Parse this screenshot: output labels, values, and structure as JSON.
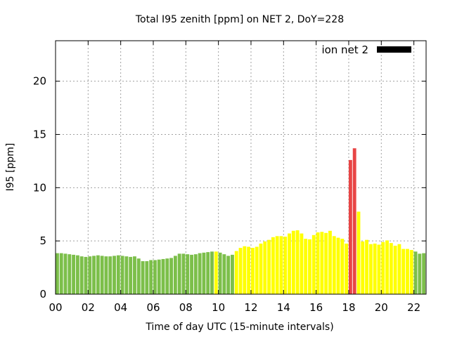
{
  "chart_data": {
    "type": "bar",
    "title": "Total I95 zenith [ppm] on NET 2, DoY=228",
    "xlabel": "Time of day UTC (15-minute intervals)",
    "ylabel": "I95 [ppm]",
    "ylim": [
      0,
      23.8
    ],
    "xlim": [
      0,
      22.75
    ],
    "x_ticks": [
      {
        "value": 0,
        "label": "00"
      },
      {
        "value": 2,
        "label": "02"
      },
      {
        "value": 4,
        "label": "04"
      },
      {
        "value": 6,
        "label": "06"
      },
      {
        "value": 8,
        "label": "08"
      },
      {
        "value": 10,
        "label": "10"
      },
      {
        "value": 12,
        "label": "12"
      },
      {
        "value": 14,
        "label": "14"
      },
      {
        "value": 16,
        "label": "16"
      },
      {
        "value": 18,
        "label": "18"
      },
      {
        "value": 20,
        "label": "20"
      },
      {
        "value": 22,
        "label": "22"
      }
    ],
    "y_ticks": [
      {
        "value": 0,
        "label": "0"
      },
      {
        "value": 5,
        "label": "5"
      },
      {
        "value": 10,
        "label": "10"
      },
      {
        "value": 15,
        "label": "15"
      },
      {
        "value": 20,
        "label": "20"
      }
    ],
    "grid": true,
    "legend": {
      "label": "ion net 2",
      "color": "#000000",
      "placement": "top-right"
    },
    "colors": {
      "green": "#7cbf4a",
      "yellow": "#ffff00",
      "red": "#e84545"
    },
    "bar_step_hours": 0.25,
    "series": [
      {
        "values": [
          {
            "x": 0.0,
            "y": 3.85,
            "c": "green"
          },
          {
            "x": 0.25,
            "y": 3.85,
            "c": "green"
          },
          {
            "x": 0.5,
            "y": 3.8,
            "c": "green"
          },
          {
            "x": 0.75,
            "y": 3.75,
            "c": "green"
          },
          {
            "x": 1.0,
            "y": 3.7,
            "c": "green"
          },
          {
            "x": 1.25,
            "y": 3.65,
            "c": "green"
          },
          {
            "x": 1.5,
            "y": 3.55,
            "c": "green"
          },
          {
            "x": 1.75,
            "y": 3.5,
            "c": "green"
          },
          {
            "x": 2.0,
            "y": 3.55,
            "c": "green"
          },
          {
            "x": 2.25,
            "y": 3.6,
            "c": "green"
          },
          {
            "x": 2.5,
            "y": 3.65,
            "c": "green"
          },
          {
            "x": 2.75,
            "y": 3.6,
            "c": "green"
          },
          {
            "x": 3.0,
            "y": 3.55,
            "c": "green"
          },
          {
            "x": 3.25,
            "y": 3.55,
            "c": "green"
          },
          {
            "x": 3.5,
            "y": 3.6,
            "c": "green"
          },
          {
            "x": 3.75,
            "y": 3.65,
            "c": "green"
          },
          {
            "x": 4.0,
            "y": 3.6,
            "c": "green"
          },
          {
            "x": 4.25,
            "y": 3.55,
            "c": "green"
          },
          {
            "x": 4.5,
            "y": 3.5,
            "c": "green"
          },
          {
            "x": 4.75,
            "y": 3.55,
            "c": "green"
          },
          {
            "x": 5.0,
            "y": 3.35,
            "c": "green"
          },
          {
            "x": 5.25,
            "y": 3.1,
            "c": "green"
          },
          {
            "x": 5.5,
            "y": 3.1,
            "c": "green"
          },
          {
            "x": 5.75,
            "y": 3.2,
            "c": "green"
          },
          {
            "x": 6.0,
            "y": 3.2,
            "c": "green"
          },
          {
            "x": 6.25,
            "y": 3.25,
            "c": "green"
          },
          {
            "x": 6.5,
            "y": 3.3,
            "c": "green"
          },
          {
            "x": 6.75,
            "y": 3.35,
            "c": "green"
          },
          {
            "x": 7.0,
            "y": 3.4,
            "c": "green"
          },
          {
            "x": 7.25,
            "y": 3.6,
            "c": "green"
          },
          {
            "x": 7.5,
            "y": 3.8,
            "c": "green"
          },
          {
            "x": 7.75,
            "y": 3.8,
            "c": "green"
          },
          {
            "x": 8.0,
            "y": 3.75,
            "c": "green"
          },
          {
            "x": 8.25,
            "y": 3.7,
            "c": "green"
          },
          {
            "x": 8.5,
            "y": 3.75,
            "c": "green"
          },
          {
            "x": 8.75,
            "y": 3.85,
            "c": "green"
          },
          {
            "x": 9.0,
            "y": 3.9,
            "c": "green"
          },
          {
            "x": 9.25,
            "y": 3.95,
            "c": "green"
          },
          {
            "x": 9.5,
            "y": 4.0,
            "c": "green"
          },
          {
            "x": 9.75,
            "y": 4.0,
            "c": "yellow"
          },
          {
            "x": 10.0,
            "y": 3.9,
            "c": "green"
          },
          {
            "x": 10.25,
            "y": 3.75,
            "c": "green"
          },
          {
            "x": 10.5,
            "y": 3.6,
            "c": "green"
          },
          {
            "x": 10.75,
            "y": 3.7,
            "c": "green"
          },
          {
            "x": 11.0,
            "y": 4.05,
            "c": "yellow"
          },
          {
            "x": 11.25,
            "y": 4.35,
            "c": "yellow"
          },
          {
            "x": 11.5,
            "y": 4.5,
            "c": "yellow"
          },
          {
            "x": 11.75,
            "y": 4.45,
            "c": "yellow"
          },
          {
            "x": 12.0,
            "y": 4.35,
            "c": "yellow"
          },
          {
            "x": 12.25,
            "y": 4.45,
            "c": "yellow"
          },
          {
            "x": 12.5,
            "y": 4.75,
            "c": "yellow"
          },
          {
            "x": 12.75,
            "y": 4.95,
            "c": "yellow"
          },
          {
            "x": 13.0,
            "y": 5.1,
            "c": "yellow"
          },
          {
            "x": 13.25,
            "y": 5.35,
            "c": "yellow"
          },
          {
            "x": 13.5,
            "y": 5.45,
            "c": "yellow"
          },
          {
            "x": 13.75,
            "y": 5.45,
            "c": "yellow"
          },
          {
            "x": 14.0,
            "y": 5.4,
            "c": "yellow"
          },
          {
            "x": 14.25,
            "y": 5.7,
            "c": "yellow"
          },
          {
            "x": 14.5,
            "y": 5.95,
            "c": "yellow"
          },
          {
            "x": 14.75,
            "y": 6.0,
            "c": "yellow"
          },
          {
            "x": 15.0,
            "y": 5.7,
            "c": "yellow"
          },
          {
            "x": 15.25,
            "y": 5.2,
            "c": "yellow"
          },
          {
            "x": 15.5,
            "y": 5.15,
            "c": "yellow"
          },
          {
            "x": 15.75,
            "y": 5.55,
            "c": "yellow"
          },
          {
            "x": 16.0,
            "y": 5.8,
            "c": "yellow"
          },
          {
            "x": 16.25,
            "y": 5.85,
            "c": "yellow"
          },
          {
            "x": 16.5,
            "y": 5.75,
            "c": "yellow"
          },
          {
            "x": 16.75,
            "y": 5.95,
            "c": "yellow"
          },
          {
            "x": 17.0,
            "y": 5.45,
            "c": "yellow"
          },
          {
            "x": 17.25,
            "y": 5.3,
            "c": "yellow"
          },
          {
            "x": 17.5,
            "y": 5.2,
            "c": "yellow"
          },
          {
            "x": 17.75,
            "y": 4.75,
            "c": "yellow"
          },
          {
            "x": 18.0,
            "y": 12.6,
            "c": "red"
          },
          {
            "x": 18.25,
            "y": 13.7,
            "c": "red"
          },
          {
            "x": 18.5,
            "y": 7.75,
            "c": "yellow"
          },
          {
            "x": 18.75,
            "y": 4.95,
            "c": "yellow"
          },
          {
            "x": 19.0,
            "y": 5.1,
            "c": "yellow"
          },
          {
            "x": 19.25,
            "y": 4.7,
            "c": "yellow"
          },
          {
            "x": 19.5,
            "y": 4.75,
            "c": "yellow"
          },
          {
            "x": 19.75,
            "y": 4.65,
            "c": "yellow"
          },
          {
            "x": 20.0,
            "y": 4.9,
            "c": "yellow"
          },
          {
            "x": 20.25,
            "y": 5.05,
            "c": "yellow"
          },
          {
            "x": 20.5,
            "y": 4.8,
            "c": "yellow"
          },
          {
            "x": 20.75,
            "y": 4.55,
            "c": "yellow"
          },
          {
            "x": 21.0,
            "y": 4.7,
            "c": "yellow"
          },
          {
            "x": 21.25,
            "y": 4.25,
            "c": "yellow"
          },
          {
            "x": 21.5,
            "y": 4.25,
            "c": "yellow"
          },
          {
            "x": 21.75,
            "y": 4.15,
            "c": "yellow"
          },
          {
            "x": 22.0,
            "y": 4.0,
            "c": "green"
          },
          {
            "x": 22.25,
            "y": 3.8,
            "c": "green"
          },
          {
            "x": 22.5,
            "y": 3.85,
            "c": "green"
          }
        ]
      }
    ]
  }
}
